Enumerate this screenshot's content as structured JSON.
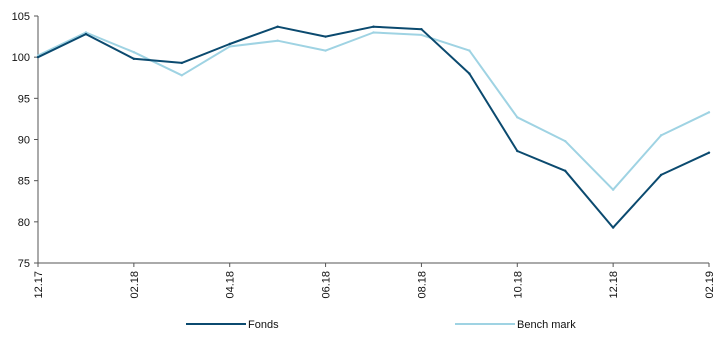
{
  "chart_data": {
    "type": "line",
    "x": [
      "12.17",
      "01.18",
      "02.18",
      "03.18",
      "04.18",
      "05.18",
      "06.18",
      "07.18",
      "08.18",
      "09.18",
      "10.18",
      "11.18",
      "12.18",
      "01.19",
      "02.19"
    ],
    "tick_labels": [
      "12.17",
      "02.18",
      "04.18",
      "06.18",
      "08.18",
      "10.18",
      "12.18",
      "02.19"
    ],
    "series": [
      {
        "name": "Fonds",
        "color": "#0b4a6f",
        "values": [
          100.0,
          102.8,
          99.8,
          99.3,
          101.6,
          103.7,
          102.5,
          103.7,
          103.4,
          98.0,
          88.6,
          86.2,
          79.3,
          85.7,
          88.4
        ]
      },
      {
        "name": "Bench mark",
        "color": "#9fd3e3",
        "values": [
          100.2,
          103.0,
          100.6,
          97.8,
          101.3,
          102.0,
          100.8,
          103.0,
          102.7,
          100.8,
          92.7,
          89.8,
          83.9,
          90.5,
          93.3
        ]
      }
    ],
    "y_ticks": [
      75,
      80,
      85,
      90,
      95,
      100,
      105
    ],
    "ylim": [
      75,
      105
    ],
    "grid": false,
    "legend_position": "bottom"
  }
}
